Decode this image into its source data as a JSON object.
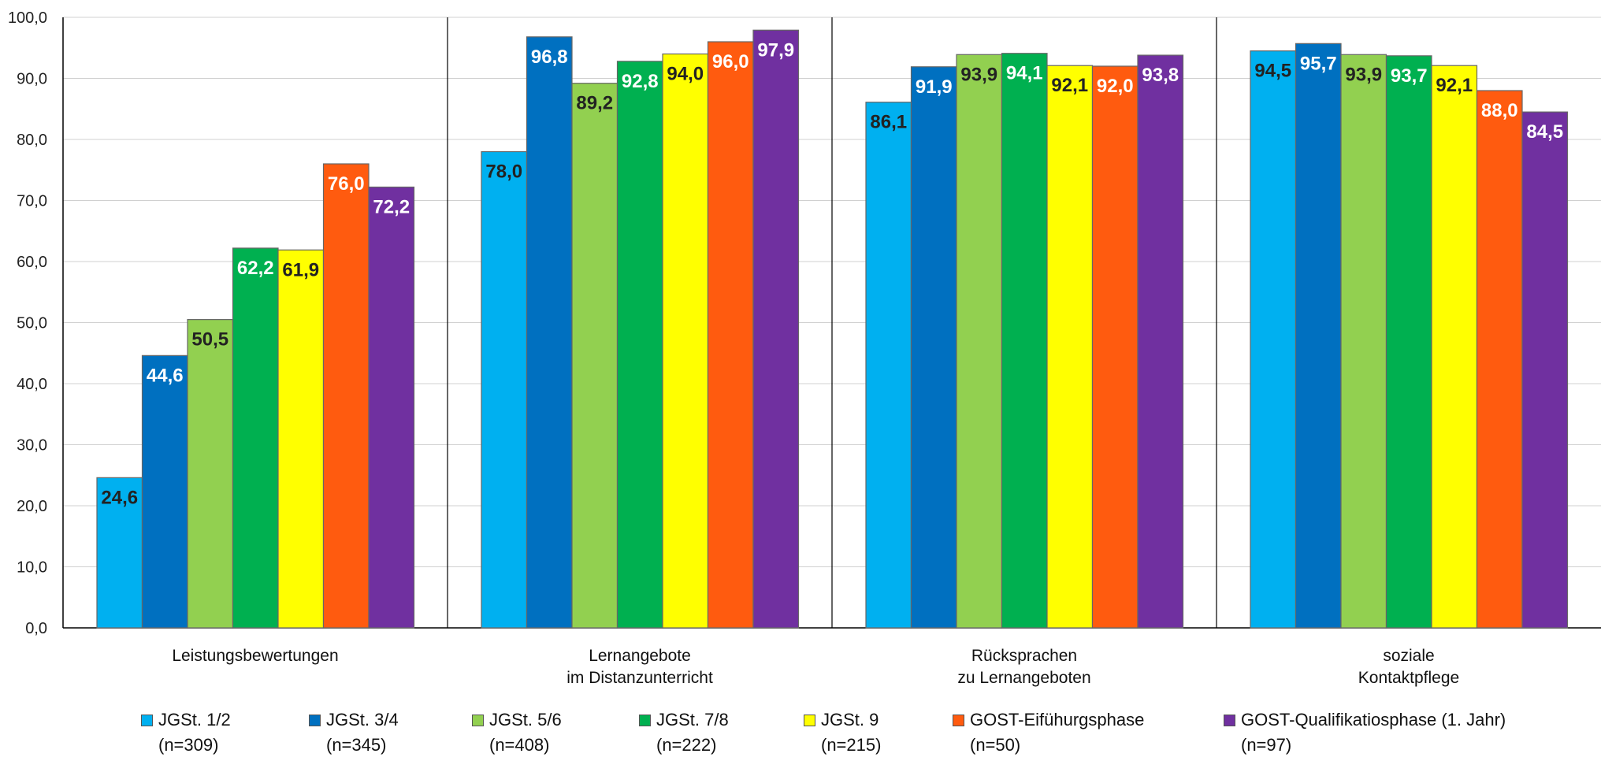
{
  "chart_data": {
    "type": "bar",
    "title": "",
    "xlabel": "",
    "ylabel": "",
    "ylim": [
      0,
      100
    ],
    "yticks": [
      "0,0",
      "10,0",
      "20,0",
      "30,0",
      "40,0",
      "50,0",
      "60,0",
      "70,0",
      "80,0",
      "90,0",
      "100,0"
    ],
    "grid": true,
    "legend_position": "bottom",
    "categories": [
      [
        "Leistungsbewertungen"
      ],
      [
        "Lernangebote",
        "im Distanzunterricht"
      ],
      [
        "Rücksprachen",
        "zu Lernangeboten"
      ],
      [
        "soziale",
        "Kontaktpflege"
      ]
    ],
    "series": [
      {
        "name": "JGSt. 1/2",
        "n": "(n=309)",
        "color": "#00B0F0",
        "label_color": "#222222",
        "values": [
          24.6,
          78.0,
          86.1,
          94.5
        ],
        "labels": [
          "24,6",
          "78,0",
          "86,1",
          "94,5"
        ]
      },
      {
        "name": "JGSt. 3/4",
        "n": "(n=345)",
        "color": "#0070C0",
        "label_color": "#FFFFFF",
        "values": [
          44.6,
          96.8,
          91.9,
          95.7
        ],
        "labels": [
          "44,6",
          "96,8",
          "91,9",
          "95,7"
        ]
      },
      {
        "name": "JGSt. 5/6",
        "n": "(n=408)",
        "color": "#92D050",
        "label_color": "#222222",
        "values": [
          50.5,
          89.2,
          93.9,
          93.9
        ],
        "labels": [
          "50,5",
          "89,2",
          "93,9",
          "93,9"
        ]
      },
      {
        "name": "JGSt. 7/8",
        "n": "(n=222)",
        "color": "#00B050",
        "label_color": "#FFFFFF",
        "values": [
          62.2,
          92.8,
          94.1,
          93.7
        ],
        "labels": [
          "62,2",
          "92,8",
          "94,1",
          "93,7"
        ]
      },
      {
        "name": "JGSt. 9",
        "n": "(n=215)",
        "color": "#FFFF00",
        "label_color": "#222222",
        "values": [
          61.9,
          94.0,
          92.1,
          92.1
        ],
        "labels": [
          "61,9",
          "94,0",
          "92,1",
          "92,1"
        ]
      },
      {
        "name": "GOST-Eifühurgsphase",
        "n": "(n=50)",
        "color": "#FF5B0F",
        "label_color": "#FFFFFF",
        "values": [
          76.0,
          96.0,
          92.0,
          88.0
        ],
        "labels": [
          "76,0",
          "96,0",
          "92,0",
          "88,0"
        ]
      },
      {
        "name": "GOST-Qualifikatiosphase (1. Jahr)",
        "n": "(n=97)",
        "color": "#7030A0",
        "label_color": "#FFFFFF",
        "values": [
          72.2,
          97.9,
          93.8,
          84.5
        ],
        "labels": [
          "72,2",
          "97,9",
          "93,8",
          "84,5"
        ]
      }
    ]
  }
}
